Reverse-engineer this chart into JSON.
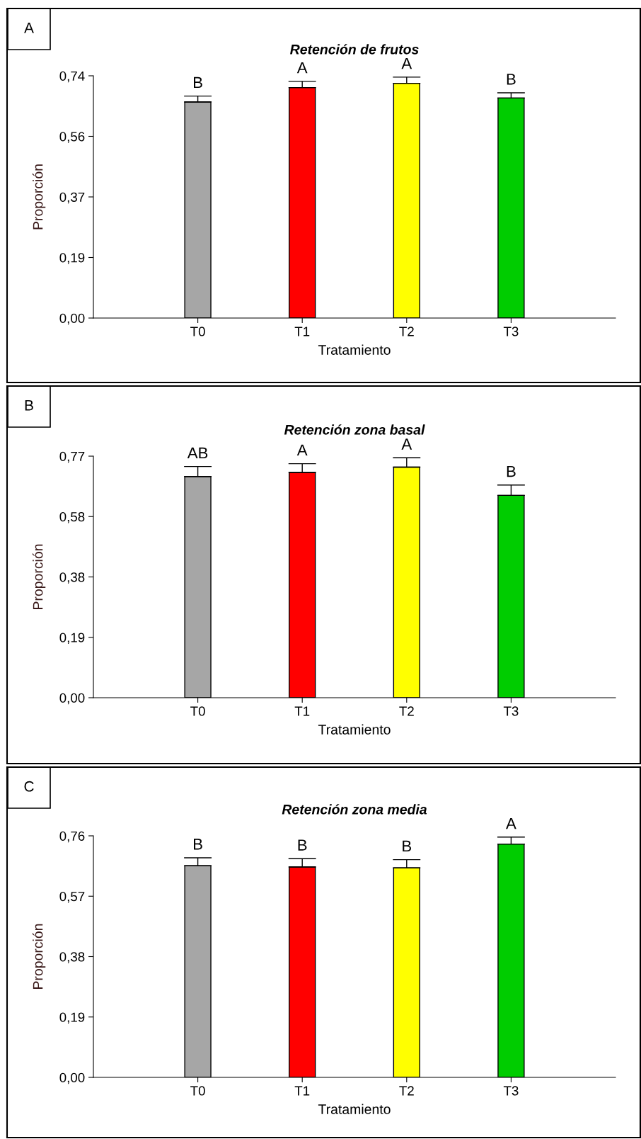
{
  "chart_data": [
    {
      "type": "bar",
      "title": "Retención de frutos",
      "xlabel": "Tratamiento",
      "ylabel": "Proporción",
      "categories": [
        "T0",
        "T1",
        "T2",
        "T3"
      ],
      "values": [
        0.66,
        0.704,
        0.717,
        0.672
      ],
      "errors": [
        0.018,
        0.019,
        0.019,
        0.016
      ],
      "colors": [
        "#a6a6a6",
        "#ff0000",
        "#ffff00",
        "#00cc00"
      ],
      "ylim": [
        0,
        0.74
      ],
      "yticks": [
        {
          "value": 0,
          "label": "0,00"
        },
        {
          "value": 0.185,
          "label": "0,19"
        },
        {
          "value": 0.37,
          "label": "0,37"
        },
        {
          "value": 0.555,
          "label": "0,56"
        },
        {
          "value": 0.74,
          "label": "0,74"
        }
      ],
      "annotations": [
        "A",
        {
          "text": "B",
          "x": "T0",
          "y": 0.678
        },
        {
          "text": "A",
          "x": "T1",
          "y": 0.723
        },
        {
          "text": "A",
          "x": "T2",
          "y": 0.736
        },
        {
          "text": "B",
          "x": "T3",
          "y": 0.688
        }
      ]
    },
    {
      "type": "bar",
      "title": "Retención zona basal",
      "xlabel": "Tratamiento",
      "ylabel": "Proporción",
      "categories": [
        "T0",
        "T1",
        "T2",
        "T3"
      ],
      "values": [
        0.705,
        0.718,
        0.735,
        0.645
      ],
      "errors": [
        0.032,
        0.028,
        0.03,
        0.033
      ],
      "colors": [
        "#a6a6a6",
        "#ff0000",
        "#ffff00",
        "#00cc00"
      ],
      "ylim": [
        0,
        0.77
      ],
      "yticks": [
        {
          "value": 0,
          "label": "0,00"
        },
        {
          "value": 0.1925,
          "label": "0,19"
        },
        {
          "value": 0.385,
          "label": "0,38"
        },
        {
          "value": 0.5775,
          "label": "0,58"
        },
        {
          "value": 0.77,
          "label": "0,77"
        }
      ],
      "annotations": [
        "B",
        {
          "text": "AB",
          "x": "T0",
          "y": 0.737
        },
        {
          "text": "A",
          "x": "T1",
          "y": 0.746
        },
        {
          "text": "A",
          "x": "T2",
          "y": 0.765
        },
        {
          "text": "B",
          "x": "T3",
          "y": 0.678
        }
      ]
    },
    {
      "type": "bar",
      "title": "Retención zona media",
      "xlabel": "Tratamiento",
      "ylabel": "Proporción",
      "categories": [
        "T0",
        "T1",
        "T2",
        "T3"
      ],
      "values": [
        0.666,
        0.662,
        0.659,
        0.734
      ],
      "errors": [
        0.025,
        0.026,
        0.026,
        0.022
      ],
      "colors": [
        "#a6a6a6",
        "#ff0000",
        "#ffff00",
        "#00cc00"
      ],
      "ylim": [
        0,
        0.76
      ],
      "yticks": [
        {
          "value": 0,
          "label": "0,00"
        },
        {
          "value": 0.19,
          "label": "0,19"
        },
        {
          "value": 0.38,
          "label": "0,38"
        },
        {
          "value": 0.57,
          "label": "0,57"
        },
        {
          "value": 0.76,
          "label": "0,76"
        }
      ],
      "annotations": [
        {
          "text": "B",
          "x": "T0",
          "y": 0.691
        },
        {
          "text": "B",
          "x": "T1",
          "y": 0.688
        },
        {
          "text": "B",
          "x": "T2",
          "y": 0.685
        },
        {
          "text": "A",
          "x": "T3",
          "y": 0.756
        },
        "C"
      ]
    }
  ]
}
